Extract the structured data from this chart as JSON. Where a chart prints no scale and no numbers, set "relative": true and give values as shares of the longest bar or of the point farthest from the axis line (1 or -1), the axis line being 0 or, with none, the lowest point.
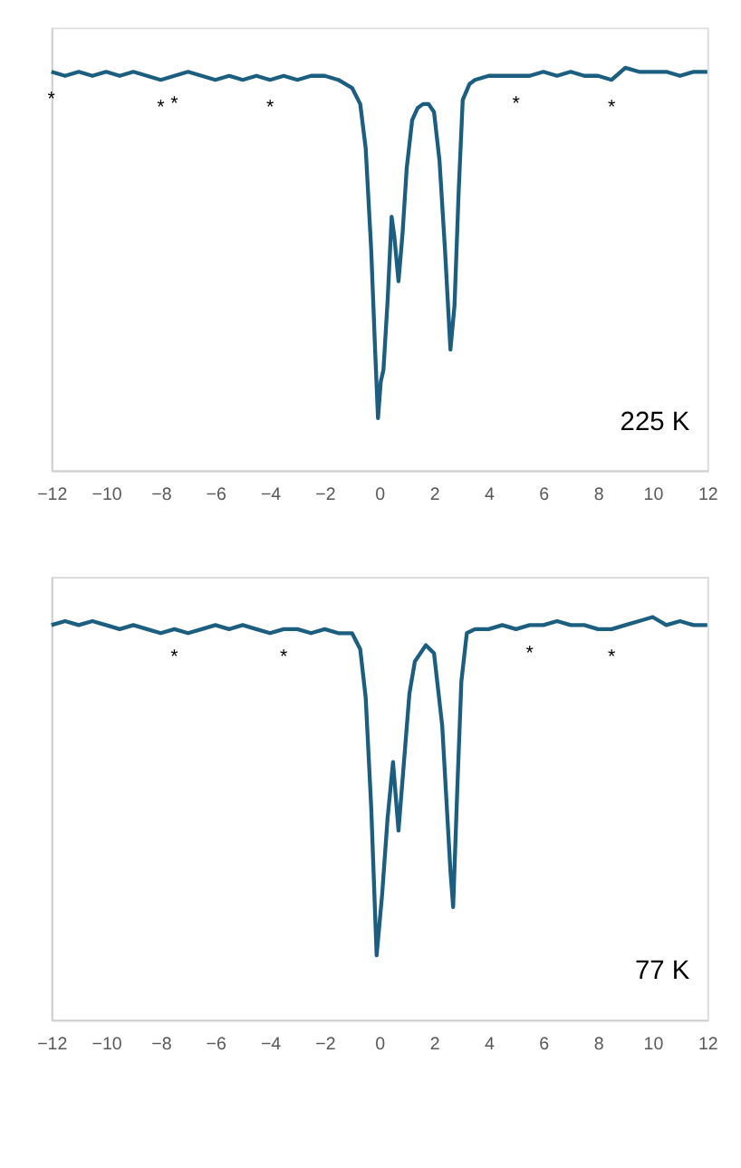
{
  "chart_data": [
    {
      "type": "line",
      "relative": true,
      "tick_labels": "x",
      "grid": false,
      "legend": false,
      "x": [
        -12,
        -11.5,
        -11,
        -10.5,
        -10,
        -9.5,
        -9,
        -8.5,
        -8,
        -7.5,
        -7,
        -6.5,
        -6,
        -5.5,
        -5,
        -4.5,
        -4,
        -3.5,
        -3,
        -2.5,
        -2,
        -1.5,
        -1,
        -0.7,
        -0.5,
        -0.3,
        -0.15,
        -0.05,
        0.05,
        0.15,
        0.3,
        0.45,
        0.55,
        0.7,
        0.85,
        1.0,
        1.2,
        1.4,
        1.6,
        1.8,
        2.0,
        2.2,
        2.4,
        2.6,
        2.75,
        2.9,
        3.05,
        3.3,
        3.5,
        4,
        4.5,
        5,
        5.5,
        6,
        6.5,
        7,
        7.5,
        8,
        8.5,
        9,
        9.5,
        10,
        10.5,
        11,
        11.5,
        12
      ],
      "series": [
        {
          "color": "#1b5e80",
          "values": [
            0.99,
            0.98,
            0.99,
            0.98,
            0.99,
            0.98,
            0.99,
            0.98,
            0.97,
            0.98,
            0.99,
            0.98,
            0.97,
            0.98,
            0.97,
            0.98,
            0.97,
            0.98,
            0.97,
            0.98,
            0.98,
            0.97,
            0.95,
            0.91,
            0.8,
            0.55,
            0.29,
            0.13,
            0.22,
            0.25,
            0.42,
            0.63,
            0.58,
            0.47,
            0.59,
            0.75,
            0.87,
            0.9,
            0.91,
            0.91,
            0.89,
            0.77,
            0.55,
            0.3,
            0.41,
            0.69,
            0.92,
            0.96,
            0.97,
            0.98,
            0.98,
            0.98,
            0.98,
            0.99,
            0.98,
            0.99,
            0.98,
            0.98,
            0.97,
            1.0,
            0.99,
            0.99,
            0.99,
            0.98,
            0.99,
            0.99
          ]
        }
      ],
      "xlim": [
        -12,
        12
      ],
      "xticks": [
        -12,
        -10,
        -8,
        -6,
        -4,
        -2,
        0,
        2,
        4,
        6,
        8,
        10,
        12
      ],
      "annotations": [
        {
          "text": "*",
          "x": -12,
          "y": 0.99
        },
        {
          "text": "*",
          "x": -8,
          "y": 0.97
        },
        {
          "text": "*",
          "x": -7.5,
          "y": 0.98
        },
        {
          "text": "*",
          "x": -4,
          "y": 0.97
        },
        {
          "text": "*",
          "x": 5,
          "y": 0.98
        },
        {
          "text": "*",
          "x": 8.5,
          "y": 0.97
        },
        "225 K"
      ]
    },
    {
      "type": "line",
      "relative": true,
      "tick_labels": "x",
      "grid": false,
      "legend": false,
      "x": [
        -12,
        -11.5,
        -11,
        -10.5,
        -10,
        -9.5,
        -9,
        -8.5,
        -8,
        -7.5,
        -7,
        -6.5,
        -6,
        -5.5,
        -5,
        -4.5,
        -4,
        -3.5,
        -3,
        -2.5,
        -2,
        -1.5,
        -1,
        -0.7,
        -0.5,
        -0.3,
        -0.1,
        0.1,
        0.3,
        0.5,
        0.7,
        0.9,
        1.1,
        1.3,
        1.7,
        2.0,
        2.3,
        2.6,
        2.7,
        2.85,
        3.0,
        3.2,
        3.5,
        4,
        4.5,
        5,
        5.5,
        6,
        6.5,
        7,
        7.5,
        8,
        8.5,
        9,
        9.5,
        10,
        10.5,
        11,
        11.5,
        12
      ],
      "series": [
        {
          "color": "#1b5e80",
          "values": [
            0.98,
            0.99,
            0.98,
            0.99,
            0.98,
            0.97,
            0.98,
            0.97,
            0.96,
            0.97,
            0.96,
            0.97,
            0.98,
            0.97,
            0.98,
            0.97,
            0.96,
            0.97,
            0.97,
            0.96,
            0.97,
            0.96,
            0.96,
            0.92,
            0.8,
            0.53,
            0.16,
            0.31,
            0.5,
            0.64,
            0.47,
            0.64,
            0.81,
            0.89,
            0.93,
            0.91,
            0.73,
            0.37,
            0.28,
            0.57,
            0.84,
            0.96,
            0.97,
            0.97,
            0.98,
            0.97,
            0.98,
            0.98,
            0.99,
            0.98,
            0.98,
            0.97,
            0.97,
            0.98,
            0.99,
            1.0,
            0.98,
            0.99,
            0.98,
            0.98
          ]
        }
      ],
      "xlim": [
        -12,
        12
      ],
      "xticks": [
        -12,
        -10,
        -8,
        -6,
        -4,
        -2,
        0,
        2,
        4,
        6,
        8,
        10,
        12
      ],
      "annotations": [
        {
          "text": "*",
          "x": -7.5,
          "y": 0.97
        },
        {
          "text": "*",
          "x": -3.5,
          "y": 0.97
        },
        {
          "text": "*",
          "x": 5.5,
          "y": 0.98
        },
        {
          "text": "*",
          "x": 8.5,
          "y": 0.97
        },
        "77 K"
      ]
    }
  ]
}
